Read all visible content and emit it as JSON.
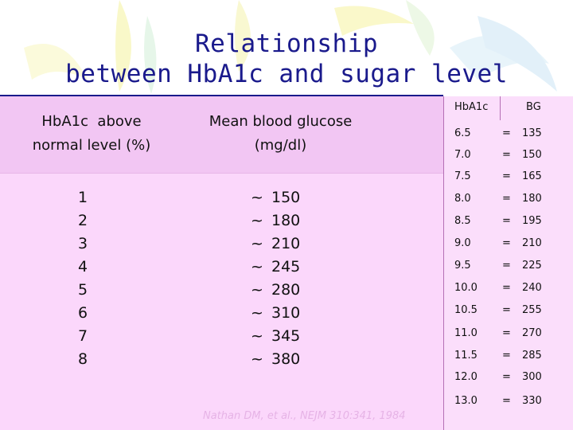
{
  "title": {
    "line1": "Relationship",
    "line2": "between HbA1c and sugar level"
  },
  "left_table": {
    "header_col1_line1": "HbA1c  above",
    "header_col1_line2": "normal level (%)",
    "header_col2_line1": "Mean blood glucose",
    "header_col2_line2": "(mg/dl)",
    "rows": [
      {
        "level": "1",
        "glucose": "150"
      },
      {
        "level": "2",
        "glucose": "180"
      },
      {
        "level": "3",
        "glucose": "210"
      },
      {
        "level": "4",
        "glucose": "245"
      },
      {
        "level": "5",
        "glucose": "280"
      },
      {
        "level": "6",
        "glucose": "310"
      },
      {
        "level": "7",
        "glucose": "345"
      },
      {
        "level": "8",
        "glucose": "380"
      }
    ],
    "tilde": "~",
    "citation": "Nathan DM, et al., NEJM 310:341, 1984"
  },
  "right_table": {
    "header_a": "HbA1c",
    "header_b": "BG",
    "eq": "=",
    "rows": [
      {
        "a": "6.5",
        "b": "135"
      },
      {
        "a": "7.0",
        "b": "150"
      },
      {
        "a": "7.5",
        "b": "165"
      },
      {
        "a": "8.0",
        "b": "180"
      },
      {
        "a": "8.5",
        "b": "195"
      },
      {
        "a": "9.0",
        "b": "210"
      },
      {
        "a": "9.5",
        "b": "225"
      },
      {
        "a": "10.0",
        "b": "240"
      },
      {
        "a": "10.5",
        "b": "255"
      },
      {
        "a": "11.0",
        "b": "270"
      },
      {
        "a": "11.5",
        "b": "285"
      },
      {
        "a": "12.0",
        "b": "300"
      },
      {
        "a": "13.0",
        "b": "330"
      }
    ]
  },
  "colors": {
    "title": "#1a1a8c",
    "left_header_bg": "#f2c6f3",
    "left_body_bg": "#fbd7fb",
    "right_bg": "#fbdefb"
  }
}
